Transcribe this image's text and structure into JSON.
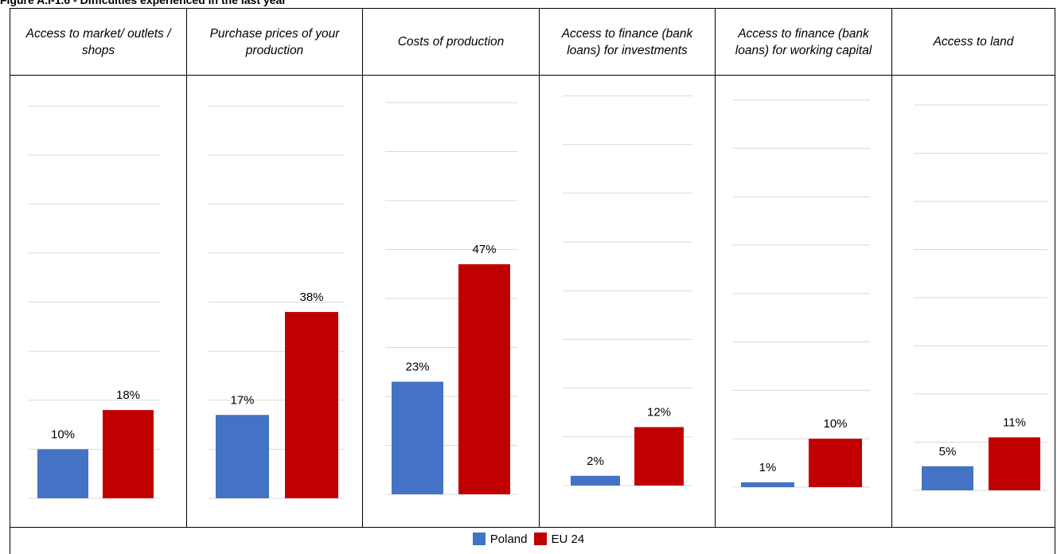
{
  "figure_title": "Figure A.I-1.6 - Difficulties experienced in the last year",
  "colors": {
    "poland": "#4472C4",
    "eu24": "#C00000",
    "grid": "#D9D9D9"
  },
  "chart_data": {
    "type": "bar",
    "categories": [
      "Access to market/ outlets / shops",
      "Purchase prices of your production",
      "Costs of production",
      "Access to finance (bank loans) for investments",
      "Access to finance (bank loans) for working capital",
      "Access to land"
    ],
    "series": [
      {
        "name": "Poland",
        "values": [
          10,
          17,
          23,
          2,
          1,
          5
        ],
        "labels": [
          "10%",
          "17%",
          "23%",
          "2%",
          "1%",
          "5%"
        ]
      },
      {
        "name": "EU 24",
        "values": [
          18,
          38,
          47,
          12,
          10,
          11
        ],
        "labels": [
          "18%",
          "38%",
          "47%",
          "12%",
          "10%",
          "11%"
        ]
      }
    ],
    "legend": "bottom"
  }
}
